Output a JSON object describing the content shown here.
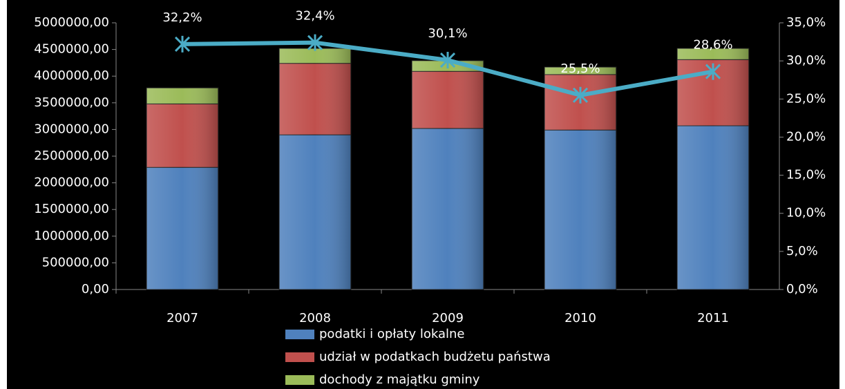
{
  "chart_data": {
    "type": "bar",
    "categories": [
      "2007",
      "2008",
      "2009",
      "2010",
      "2011"
    ],
    "series": [
      {
        "name": "podatki i opłaty lokalne",
        "color": "#4f81bd",
        "values": [
          2290000,
          2900000,
          3020000,
          2990000,
          3070000
        ]
      },
      {
        "name": "udział w podatkach budżetu państwa",
        "color": "#c0504d",
        "values": [
          1190000,
          1340000,
          1070000,
          1040000,
          1240000
        ]
      },
      {
        "name": "dochody z majątku gminy",
        "color": "#9bbb59",
        "values": [
          300000,
          280000,
          200000,
          140000,
          210000
        ]
      },
      {
        "type": "line",
        "axis": "y2",
        "color": "#4bacc6",
        "values": [
          32.2,
          32.4,
          30.1,
          25.5,
          28.6
        ],
        "value_labels": [
          "32,2%",
          "32,4%",
          "30,1%",
          "25,5%",
          "28,6%"
        ]
      }
    ],
    "ylim": [
      0,
      5000000
    ],
    "yticks": [
      {
        "value": 0,
        "label": "0,00"
      },
      {
        "value": 500000,
        "label": "500000,00"
      },
      {
        "value": 1000000,
        "label": "1000000,00"
      },
      {
        "value": 1500000,
        "label": "1500000,00"
      },
      {
        "value": 2000000,
        "label": "2000000,00"
      },
      {
        "value": 2500000,
        "label": "2500000,00"
      },
      {
        "value": 3000000,
        "label": "3000000,00"
      },
      {
        "value": 3500000,
        "label": "3500000,00"
      },
      {
        "value": 4000000,
        "label": "4000000,00"
      },
      {
        "value": 4500000,
        "label": "4500000,00"
      },
      {
        "value": 5000000,
        "label": "5000000,00"
      }
    ],
    "y2lim": [
      0,
      35
    ],
    "y2ticks": [
      {
        "value": 0,
        "label": "0,0%"
      },
      {
        "value": 5,
        "label": "5,0%"
      },
      {
        "value": 10,
        "label": "10,0%"
      },
      {
        "value": 15,
        "label": "15,0%"
      },
      {
        "value": 20,
        "label": "20,0%"
      },
      {
        "value": 25,
        "label": "25,0%"
      },
      {
        "value": 30,
        "label": "30,0%"
      },
      {
        "value": 35,
        "label": "35,0%"
      }
    ],
    "legend": "bottom"
  }
}
